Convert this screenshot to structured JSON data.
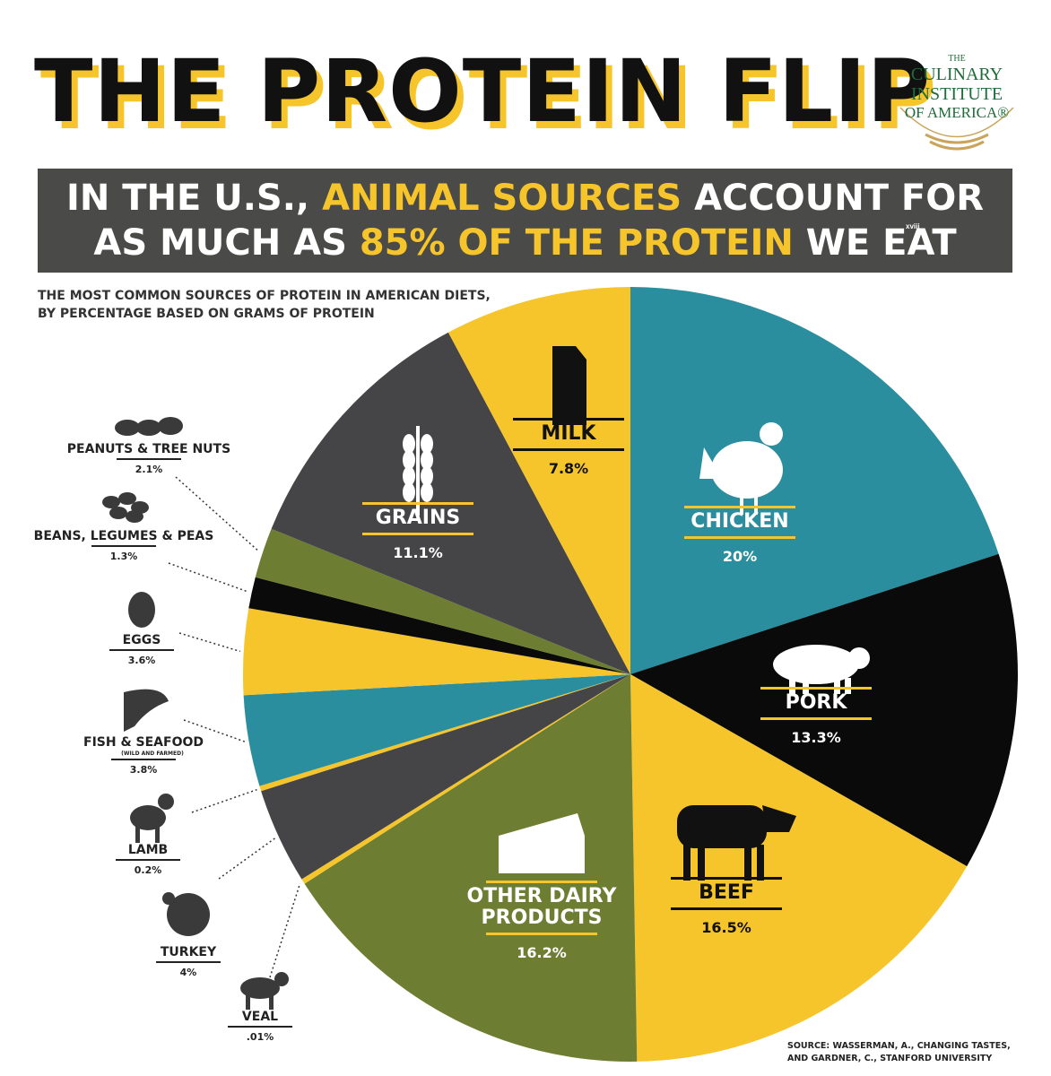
{
  "header": {
    "title": "THE PROTEIN FLIP",
    "logo": {
      "line1": "THE",
      "line2": "CULINARY",
      "line3": "INSTITUTE",
      "line4": "OF AMERICA®"
    },
    "banner_line1_a": "IN THE U.S., ",
    "banner_line1_b": "ANIMAL SOURCES",
    "banner_line1_c": " ACCOUNT FOR",
    "banner_line2_a": "AS MUCH AS ",
    "banner_line2_b": "85% OF THE PROTEIN",
    "banner_line2_c": " WE EAT",
    "banner_sup": "xviii",
    "subtitle_line1": "THE MOST COMMON SOURCES OF PROTEIN IN AMERICAN DIETS,",
    "subtitle_line2": "BY PERCENTAGE BASED ON GRAMS OF PROTEIN"
  },
  "chart_data": {
    "type": "pie",
    "start": "12 o'clock, clockwise",
    "slices": [
      {
        "label": "CHICKEN",
        "value": 20,
        "display": "20%",
        "color": "#2a8e9e",
        "icon": "chicken-icon"
      },
      {
        "label": "PORK",
        "value": 13.3,
        "display": "13.3%",
        "color": "#0a0a0a",
        "icon": "pig-icon"
      },
      {
        "label": "BEEF",
        "value": 16.5,
        "display": "16.5%",
        "color": "#f6c52b",
        "icon": "cow-icon"
      },
      {
        "label": "OTHER DAIRY PRODUCTS",
        "value": 16.2,
        "display": "16.2%",
        "color": "#6d7e33",
        "icon": "cheese-icon"
      },
      {
        "label": "VEAL",
        "value": 0.01,
        "display": ".01%",
        "color": "#f6c52b",
        "icon": "calf-icon"
      },
      {
        "label": "TURKEY",
        "value": 4,
        "display": "4%",
        "color": "#454547",
        "icon": "turkey-icon"
      },
      {
        "label": "LAMB",
        "value": 0.2,
        "display": "0.2%",
        "color": "#f6c52b",
        "icon": "lamb-icon"
      },
      {
        "label": "FISH & SEAFOOD",
        "sublabel": "(WILD AND FARMED)",
        "value": 3.8,
        "display": "3.8%",
        "color": "#2a8e9e",
        "icon": "fish-icon"
      },
      {
        "label": "EGGS",
        "value": 3.6,
        "display": "3.6%",
        "color": "#f6c52b",
        "icon": "egg-icon"
      },
      {
        "label": "BEANS, LEGUMES & PEAS",
        "value": 1.3,
        "display": "1.3%",
        "color": "#0a0a0a",
        "icon": "beans-icon"
      },
      {
        "label": "PEANUTS & TREE NUTS",
        "value": 2.1,
        "display": "2.1%",
        "color": "#6d7e33",
        "icon": "nuts-icon"
      },
      {
        "label": "GRAINS",
        "value": 11.1,
        "display": "11.1%",
        "color": "#454547",
        "icon": "wheat-icon"
      },
      {
        "label": "MILK",
        "value": 7.8,
        "display": "7.8%",
        "color": "#f6c52b",
        "icon": "milk-carton-icon"
      }
    ],
    "inside_labels": [
      "CHICKEN",
      "PORK",
      "BEEF",
      "OTHER DAIRY PRODUCTS",
      "GRAINS",
      "MILK"
    ],
    "outside_labels": [
      "PEANUTS & TREE NUTS",
      "BEANS, LEGUMES & PEAS",
      "EGGS",
      "FISH & SEAFOOD",
      "LAMB",
      "TURKEY",
      "VEAL"
    ]
  },
  "source": {
    "line1": "SOURCE: WASSERMAN, A., CHANGING TASTES,",
    "line2": "AND GARDNER, C., STANFORD UNIVERSITY"
  }
}
